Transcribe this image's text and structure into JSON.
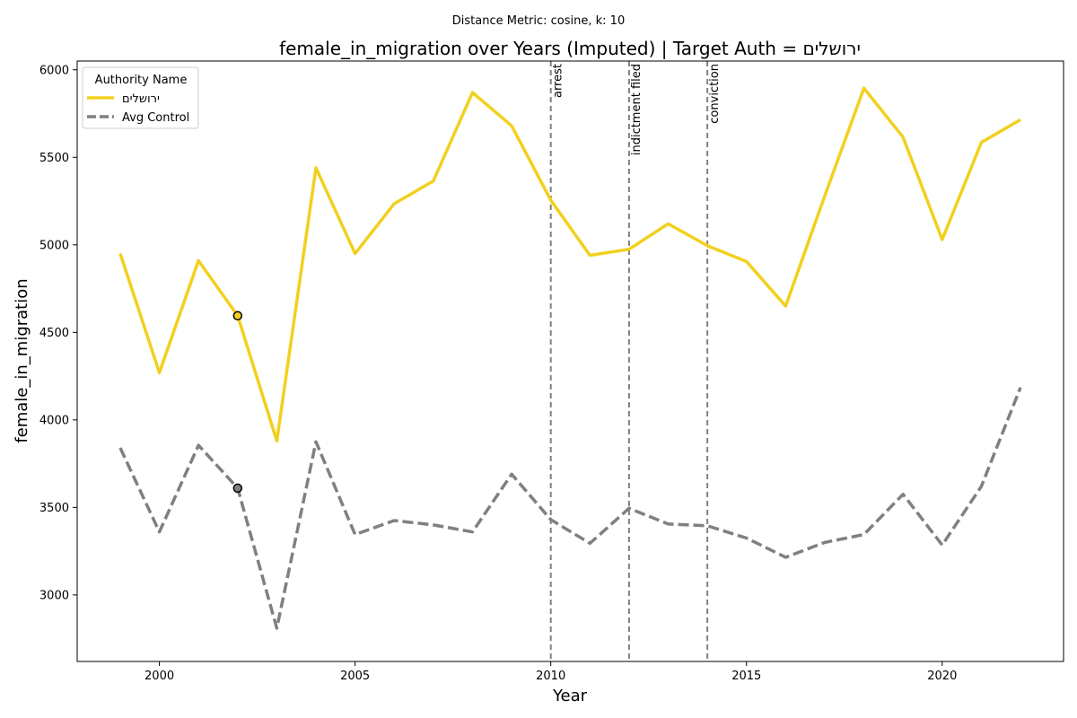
{
  "chart_data": {
    "type": "line",
    "subtitle": "Distance Metric: cosine, k: 10",
    "title": "female_in_migration over Years (Imputed) | Target Auth = ירושלים",
    "xlabel": "Year",
    "ylabel": "female_in_migration",
    "xlim": [
      1997.9,
      2023.1
    ],
    "ylim": [
      2620,
      6050
    ],
    "xticks": [
      2000,
      2005,
      2010,
      2015,
      2020
    ],
    "yticks": [
      3000,
      3500,
      4000,
      4500,
      5000,
      5500,
      6000
    ],
    "grid": false,
    "legend": {
      "title": "Authority Name",
      "placement": "top-left"
    },
    "x": [
      1999,
      2000,
      2001,
      2002,
      2003,
      2004,
      2005,
      2006,
      2007,
      2008,
      2009,
      2010,
      2011,
      2012,
      2013,
      2014,
      2015,
      2016,
      2017,
      2018,
      2019,
      2020,
      2021,
      2022
    ],
    "series": [
      {
        "name": "ירושלים",
        "color": "#f2d01f",
        "style": "solid",
        "values": [
          4950,
          4270,
          4910,
          4595,
          3880,
          5440,
          4950,
          5235,
          5365,
          5870,
          5680,
          5255,
          4940,
          4975,
          5120,
          4995,
          4905,
          4650,
          5280,
          5895,
          5615,
          5030,
          5585,
          5715
        ]
      },
      {
        "name": "Avg Control",
        "color": "#808080",
        "style": "dashed",
        "values": [
          3840,
          3360,
          3855,
          3610,
          2810,
          3875,
          3345,
          3425,
          3400,
          3360,
          3690,
          3430,
          3295,
          3495,
          3405,
          3395,
          3325,
          3215,
          3300,
          3345,
          3575,
          3285,
          3620,
          4185
        ]
      }
    ],
    "imputed_points": [
      {
        "series": 0,
        "x": 2002,
        "y": 4595
      },
      {
        "series": 1,
        "x": 2002,
        "y": 3610
      }
    ],
    "events": [
      {
        "x": 2010,
        "label": "arrest"
      },
      {
        "x": 2012,
        "label": "indictment filed"
      },
      {
        "x": 2014,
        "label": "conviction"
      }
    ]
  }
}
